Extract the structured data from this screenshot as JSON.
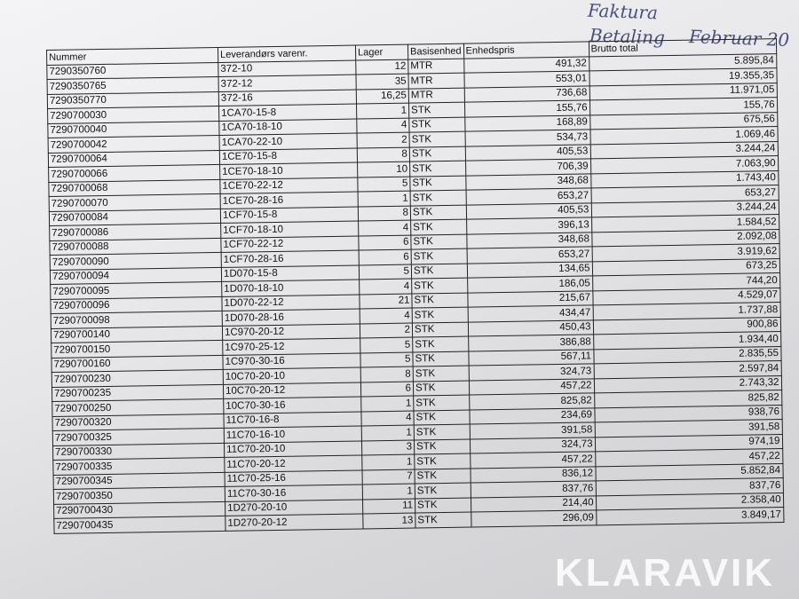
{
  "handwriting": [
    "Faktura",
    "Betaling",
    "Februar 20"
  ],
  "watermark": "KLARAVIK",
  "table": {
    "headers": [
      "Nummer",
      "Leverandørs varenr.",
      "Lager",
      "Basisenhed",
      "Enhedspris",
      "Brutto total"
    ],
    "rows": [
      [
        "7290350760",
        "372-10",
        "12",
        "MTR",
        "491,32",
        "5.895,84"
      ],
      [
        "7290350765",
        "372-12",
        "35",
        "MTR",
        "553,01",
        "19.355,35"
      ],
      [
        "7290350770",
        "372-16",
        "16,25",
        "MTR",
        "736,68",
        "11.971,05"
      ],
      [
        "7290700030",
        "1CA70-15-8",
        "1",
        "STK",
        "155,76",
        "155,76"
      ],
      [
        "7290700040",
        "1CA70-18-10",
        "4",
        "STK",
        "168,89",
        "675,56"
      ],
      [
        "7290700042",
        "1CA70-22-10",
        "2",
        "STK",
        "534,73",
        "1.069,46"
      ],
      [
        "7290700064",
        "1CE70-15-8",
        "8",
        "STK",
        "405,53",
        "3.244,24"
      ],
      [
        "7290700066",
        "1CE70-18-10",
        "10",
        "STK",
        "706,39",
        "7.063,90"
      ],
      [
        "7290700068",
        "1CE70-22-12",
        "5",
        "STK",
        "348,68",
        "1.743,40"
      ],
      [
        "7290700070",
        "1CE70-28-16",
        "1",
        "STK",
        "653,27",
        "653,27"
      ],
      [
        "7290700084",
        "1CF70-15-8",
        "8",
        "STK",
        "405,53",
        "3.244,24"
      ],
      [
        "7290700086",
        "1CF70-18-10",
        "4",
        "STK",
        "396,13",
        "1.584,52"
      ],
      [
        "7290700088",
        "1CF70-22-12",
        "6",
        "STK",
        "348,68",
        "2.092,08"
      ],
      [
        "7290700090",
        "1CF70-28-16",
        "6",
        "STK",
        "653,27",
        "3.919,62"
      ],
      [
        "7290700094",
        "1D070-15-8",
        "5",
        "STK",
        "134,65",
        "673,25"
      ],
      [
        "7290700095",
        "1D070-18-10",
        "4",
        "STK",
        "186,05",
        "744,20"
      ],
      [
        "7290700096",
        "1D070-22-12",
        "21",
        "STK",
        "215,67",
        "4.529,07"
      ],
      [
        "7290700098",
        "1D070-28-16",
        "4",
        "STK",
        "434,47",
        "1.737,88"
      ],
      [
        "7290700140",
        "1C970-20-12",
        "2",
        "STK",
        "450,43",
        "900,86"
      ],
      [
        "7290700150",
        "1C970-25-12",
        "5",
        "STK",
        "386,88",
        "1.934,40"
      ],
      [
        "7290700160",
        "1C970-30-16",
        "5",
        "STK",
        "567,11",
        "2.835,55"
      ],
      [
        "7290700230",
        "10C70-20-10",
        "8",
        "STK",
        "324,73",
        "2.597,84"
      ],
      [
        "7290700235",
        "10C70-20-12",
        "6",
        "STK",
        "457,22",
        "2.743,32"
      ],
      [
        "7290700250",
        "10C70-30-16",
        "1",
        "STK",
        "825,82",
        "825,82"
      ],
      [
        "7290700320",
        "11C70-16-8",
        "4",
        "STK",
        "234,69",
        "938,76"
      ],
      [
        "7290700325",
        "11C70-16-10",
        "1",
        "STK",
        "391,58",
        "391,58"
      ],
      [
        "7290700330",
        "11C70-20-10",
        "3",
        "STK",
        "324,73",
        "974,19"
      ],
      [
        "7290700335",
        "11C70-20-12",
        "1",
        "STK",
        "457,22",
        "457,22"
      ],
      [
        "7290700345",
        "11C70-25-16",
        "7",
        "STK",
        "836,12",
        "5.852,84"
      ],
      [
        "7290700350",
        "11C70-30-16",
        "1",
        "STK",
        "837,76",
        "837,76"
      ],
      [
        "7290700430",
        "1D270-20-10",
        "11",
        "STK",
        "214,40",
        "2.358,40"
      ],
      [
        "7290700435",
        "1D270-20-12",
        "13",
        "STK",
        "296,09",
        "3.849,17"
      ]
    ]
  }
}
